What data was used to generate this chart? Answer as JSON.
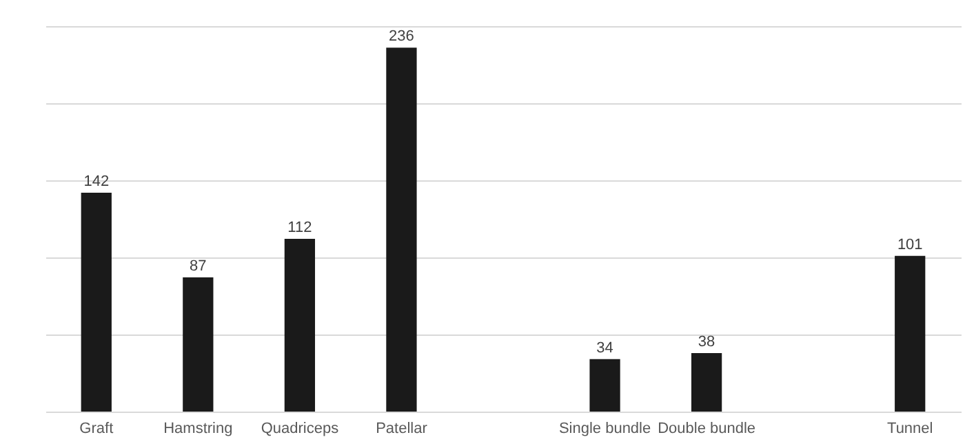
{
  "chart_data": {
    "type": "bar",
    "categories": [
      "Graft",
      "Hamstring",
      "Quadriceps",
      "Patellar",
      null,
      "Single bundle",
      "Double bundle",
      null,
      "Tunnel"
    ],
    "values": [
      142,
      87,
      112,
      236,
      null,
      34,
      38,
      null,
      101
    ],
    "color": "#1a1a1a",
    "ylim": [
      0,
      250
    ],
    "yticks": [
      {
        "value": 0,
        "label": null
      },
      {
        "value": 50,
        "label": null
      },
      {
        "value": 100,
        "label": null
      },
      {
        "value": 150,
        "label": null
      },
      {
        "value": 200,
        "label": null
      },
      {
        "value": 250,
        "label": null
      }
    ],
    "grid": "y",
    "tick_labels": "x",
    "data_labels": true
  }
}
